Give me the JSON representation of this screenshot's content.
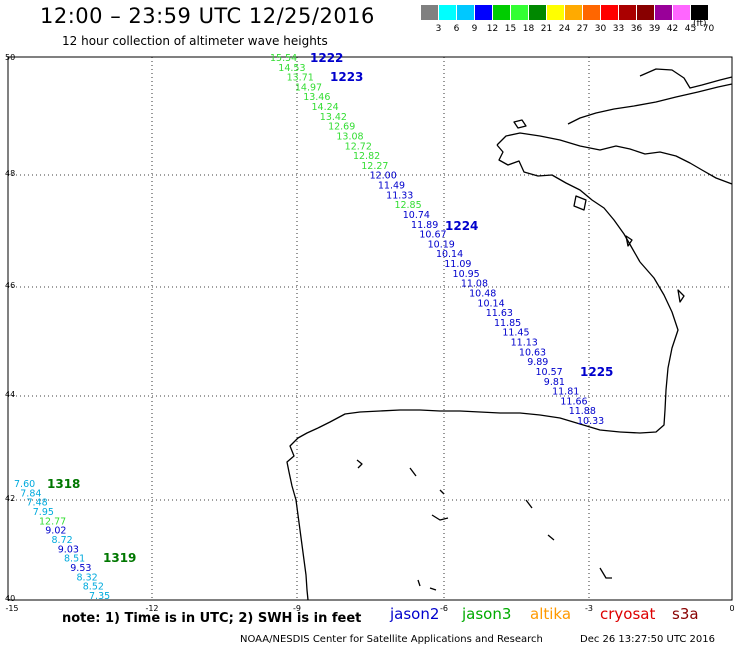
{
  "header": {
    "title": "12:00 – 23:59 UTC 12/25/2016",
    "subtitle": "12 hour collection of altimeter wave heights"
  },
  "colorbar": {
    "colors": [
      "#808080",
      "#00ffff",
      "#00c8ff",
      "#0000ff",
      "#00cc00",
      "#33ff33",
      "#008800",
      "#ffff00",
      "#ffaa00",
      "#ff6600",
      "#ff0000",
      "#aa0000",
      "#880000",
      "#990099",
      "#ff66ff",
      "#000000"
    ],
    "labels": [
      "3",
      "6",
      "9",
      "12",
      "15",
      "18",
      "21",
      "24",
      "27",
      "30",
      "33",
      "36",
      "39",
      "42",
      "45",
      "70"
    ],
    "unit": "(ft)"
  },
  "map": {
    "lon_labels": [
      "-15",
      "-12",
      "-9",
      "-6",
      "-3",
      "0"
    ],
    "lat_labels": [
      "50",
      "48",
      "46",
      "44",
      "42",
      "40"
    ],
    "passes": [
      {
        "label": "1222",
        "color": "#0000cc"
      },
      {
        "label": "1223",
        "color": "#0000cc"
      },
      {
        "label": "1224",
        "color": "#0000cc"
      },
      {
        "label": "1225",
        "color": "#0000cc"
      },
      {
        "label": "1318",
        "color": "#007700"
      },
      {
        "label": "1319",
        "color": "#007700"
      }
    ],
    "track_a": {
      "values": [
        "15.54",
        "14.53",
        "13.71",
        "14.97",
        "13.46",
        "14.24",
        "13.42",
        "12.69",
        "13.08",
        "12.72",
        "12.82",
        "12.27",
        "12.00",
        "11.49",
        "11.33",
        "12.85",
        "10.74",
        "11.89",
        "10.67",
        "10.19",
        "10.14",
        "11.09",
        "10.95",
        "11.08",
        "10.48",
        "10.14",
        "11.63",
        "11.85",
        "11.45",
        "11.13",
        "10.63",
        "9.89",
        "10.57",
        "9.81",
        "11.81",
        "11.66",
        "11.88",
        "10.33"
      ],
      "colors": [
        "#33dd33",
        "#33dd33",
        "#33dd33",
        "#33dd33",
        "#33dd33",
        "#33dd33",
        "#33dd33",
        "#33dd33",
        "#33dd33",
        "#33dd33",
        "#33dd33",
        "#33dd33",
        "#0000cc",
        "#0000cc",
        "#0000cc",
        "#33dd33",
        "#0000cc",
        "#0000cc",
        "#0000cc",
        "#0000cc",
        "#0000cc",
        "#0000cc",
        "#0000cc",
        "#0000cc",
        "#0000cc",
        "#0000cc",
        "#0000cc",
        "#0000cc",
        "#0000cc",
        "#0000cc",
        "#0000cc",
        "#0000cc",
        "#0000cc",
        "#0000cc",
        "#0000cc",
        "#0000cc",
        "#0000cc",
        "#0000cc"
      ]
    },
    "track_b": {
      "values": [
        "7.60",
        "7.84",
        "7.48",
        "7.95",
        "12.77",
        "9.02",
        "8.72",
        "9.03",
        "8.51",
        "9.53",
        "8.32",
        "8.52",
        "7.35"
      ],
      "colors": [
        "#00aadd",
        "#00aadd",
        "#00aadd",
        "#00aadd",
        "#33dd33",
        "#0000cc",
        "#00aadd",
        "#0000cc",
        "#00aadd",
        "#0000cc",
        "#00aadd",
        "#00aadd",
        "#00aadd"
      ]
    }
  },
  "footer": {
    "note": "note: 1) Time is in UTC; 2) SWH is in feet",
    "legend": [
      {
        "name": "jason2",
        "color": "#0000cc"
      },
      {
        "name": "jason3",
        "color": "#00aa00"
      },
      {
        "name": "altika",
        "color": "#ff9900"
      },
      {
        "name": "cryosat",
        "color": "#dd0000"
      },
      {
        "name": "s3a",
        "color": "#880000"
      }
    ],
    "credit": "NOAA/NESDIS Center for Satellite Applications and Research",
    "timestamp": "Dec 26 13:27:50 UTC 2016"
  }
}
